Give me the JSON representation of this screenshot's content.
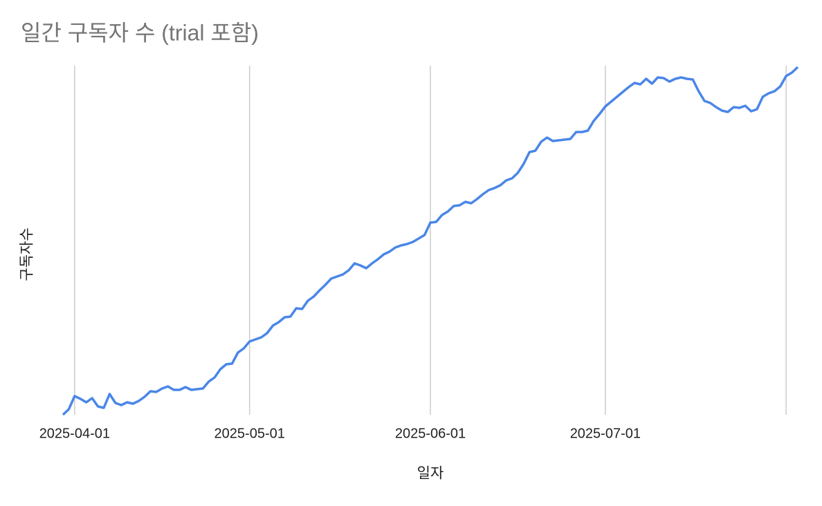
{
  "chart_data": {
    "type": "line",
    "title": "일간 구독자 수 (trial 포함)",
    "x_label": "일자",
    "y_label": "구독자수",
    "x": [
      "2025-03-30",
      "2025-03-31",
      "2025-04-01",
      "2025-04-02",
      "2025-04-03",
      "2025-04-04",
      "2025-04-05",
      "2025-04-06",
      "2025-04-07",
      "2025-04-08",
      "2025-04-09",
      "2025-04-10",
      "2025-04-11",
      "2025-04-12",
      "2025-04-13",
      "2025-04-14",
      "2025-04-15",
      "2025-04-16",
      "2025-04-17",
      "2025-04-18",
      "2025-04-19",
      "2025-04-20",
      "2025-04-21",
      "2025-04-22",
      "2025-04-23",
      "2025-04-24",
      "2025-04-25",
      "2025-04-26",
      "2025-04-27",
      "2025-04-28",
      "2025-04-29",
      "2025-04-30",
      "2025-05-01",
      "2025-05-02",
      "2025-05-03",
      "2025-05-04",
      "2025-05-05",
      "2025-05-06",
      "2025-05-07",
      "2025-05-08",
      "2025-05-09",
      "2025-05-10",
      "2025-05-11",
      "2025-05-12",
      "2025-05-13",
      "2025-05-14",
      "2025-05-15",
      "2025-05-16",
      "2025-05-17",
      "2025-05-18",
      "2025-05-19",
      "2025-05-20",
      "2025-05-21",
      "2025-05-22",
      "2025-05-23",
      "2025-05-24",
      "2025-05-25",
      "2025-05-26",
      "2025-05-27",
      "2025-05-28",
      "2025-05-29",
      "2025-05-30",
      "2025-05-31",
      "2025-06-01",
      "2025-06-02",
      "2025-06-03",
      "2025-06-04",
      "2025-06-05",
      "2025-06-06",
      "2025-06-07",
      "2025-06-08",
      "2025-06-09",
      "2025-06-10",
      "2025-06-11",
      "2025-06-12",
      "2025-06-13",
      "2025-06-14",
      "2025-06-15",
      "2025-06-16",
      "2025-06-17",
      "2025-06-18",
      "2025-06-19",
      "2025-06-20",
      "2025-06-21",
      "2025-06-22",
      "2025-06-23",
      "2025-06-24",
      "2025-06-25",
      "2025-06-26",
      "2025-06-27",
      "2025-06-28",
      "2025-06-29",
      "2025-06-30",
      "2025-07-01",
      "2025-07-02",
      "2025-07-03",
      "2025-07-04",
      "2025-07-05",
      "2025-07-06",
      "2025-07-07",
      "2025-07-08",
      "2025-07-09",
      "2025-07-10",
      "2025-07-11",
      "2025-07-12",
      "2025-07-13",
      "2025-07-14",
      "2025-07-15",
      "2025-07-16",
      "2025-07-17",
      "2025-07-18",
      "2025-07-19",
      "2025-07-20",
      "2025-07-21",
      "2025-07-22",
      "2025-07-23",
      "2025-07-24",
      "2025-07-25",
      "2025-07-26",
      "2025-07-27",
      "2025-07-28",
      "2025-07-29",
      "2025-07-30",
      "2025-07-31",
      "2025-08-01",
      "2025-08-02",
      "2025-08-03"
    ],
    "values": [
      0,
      1.6,
      5.4,
      4.6,
      3.6,
      4.8,
      2.4,
      2,
      6,
      3.4,
      2.8,
      3.6,
      3.2,
      4,
      5.2,
      6.8,
      6.6,
      7.6,
      8.2,
      7.2,
      7.2,
      8,
      7.2,
      7.4,
      7.6,
      9.6,
      10.8,
      13.2,
      14.6,
      14.8,
      18,
      19.2,
      21.2,
      21.8,
      22.4,
      23.6,
      25.8,
      26.8,
      28.2,
      28.4,
      30.8,
      30.6,
      33,
      34.2,
      36,
      37.6,
      39.4,
      40,
      40.6,
      41.8,
      43.8,
      43.2,
      42.4,
      43.8,
      45,
      46.4,
      47.2,
      48.4,
      49,
      49.4,
      50,
      51,
      52,
      55.6,
      55.8,
      57.8,
      58.8,
      60.4,
      60.6,
      61.6,
      61.2,
      62.4,
      63.8,
      65,
      65.6,
      66.4,
      67.8,
      68.4,
      70,
      72.6,
      76,
      76.4,
      79,
      80.2,
      79.2,
      79.4,
      79.6,
      79.8,
      81.8,
      81.8,
      82.2,
      85,
      87,
      89.2,
      90.6,
      92,
      93.4,
      94.8,
      96,
      95.6,
      97.2,
      95.8,
      97.6,
      97.4,
      96.4,
      97.2,
      97.6,
      97.2,
      97,
      93.6,
      90.8,
      90.2,
      89,
      88,
      87.6,
      89,
      88.8,
      89.4,
      87.8,
      88.4,
      92,
      93,
      93.6,
      95,
      98,
      99,
      100.6
    ],
    "color": "#4a86e8",
    "xlim": [
      "2025-03-30",
      "2025-08-03"
    ],
    "xticks": [
      "2025-04-01",
      "2025-05-01",
      "2025-06-01",
      "2025-07-01",
      {
        "value": "2025-08-01",
        "label": null
      }
    ],
    "ylim": [
      0,
      101
    ],
    "grid": true
  }
}
